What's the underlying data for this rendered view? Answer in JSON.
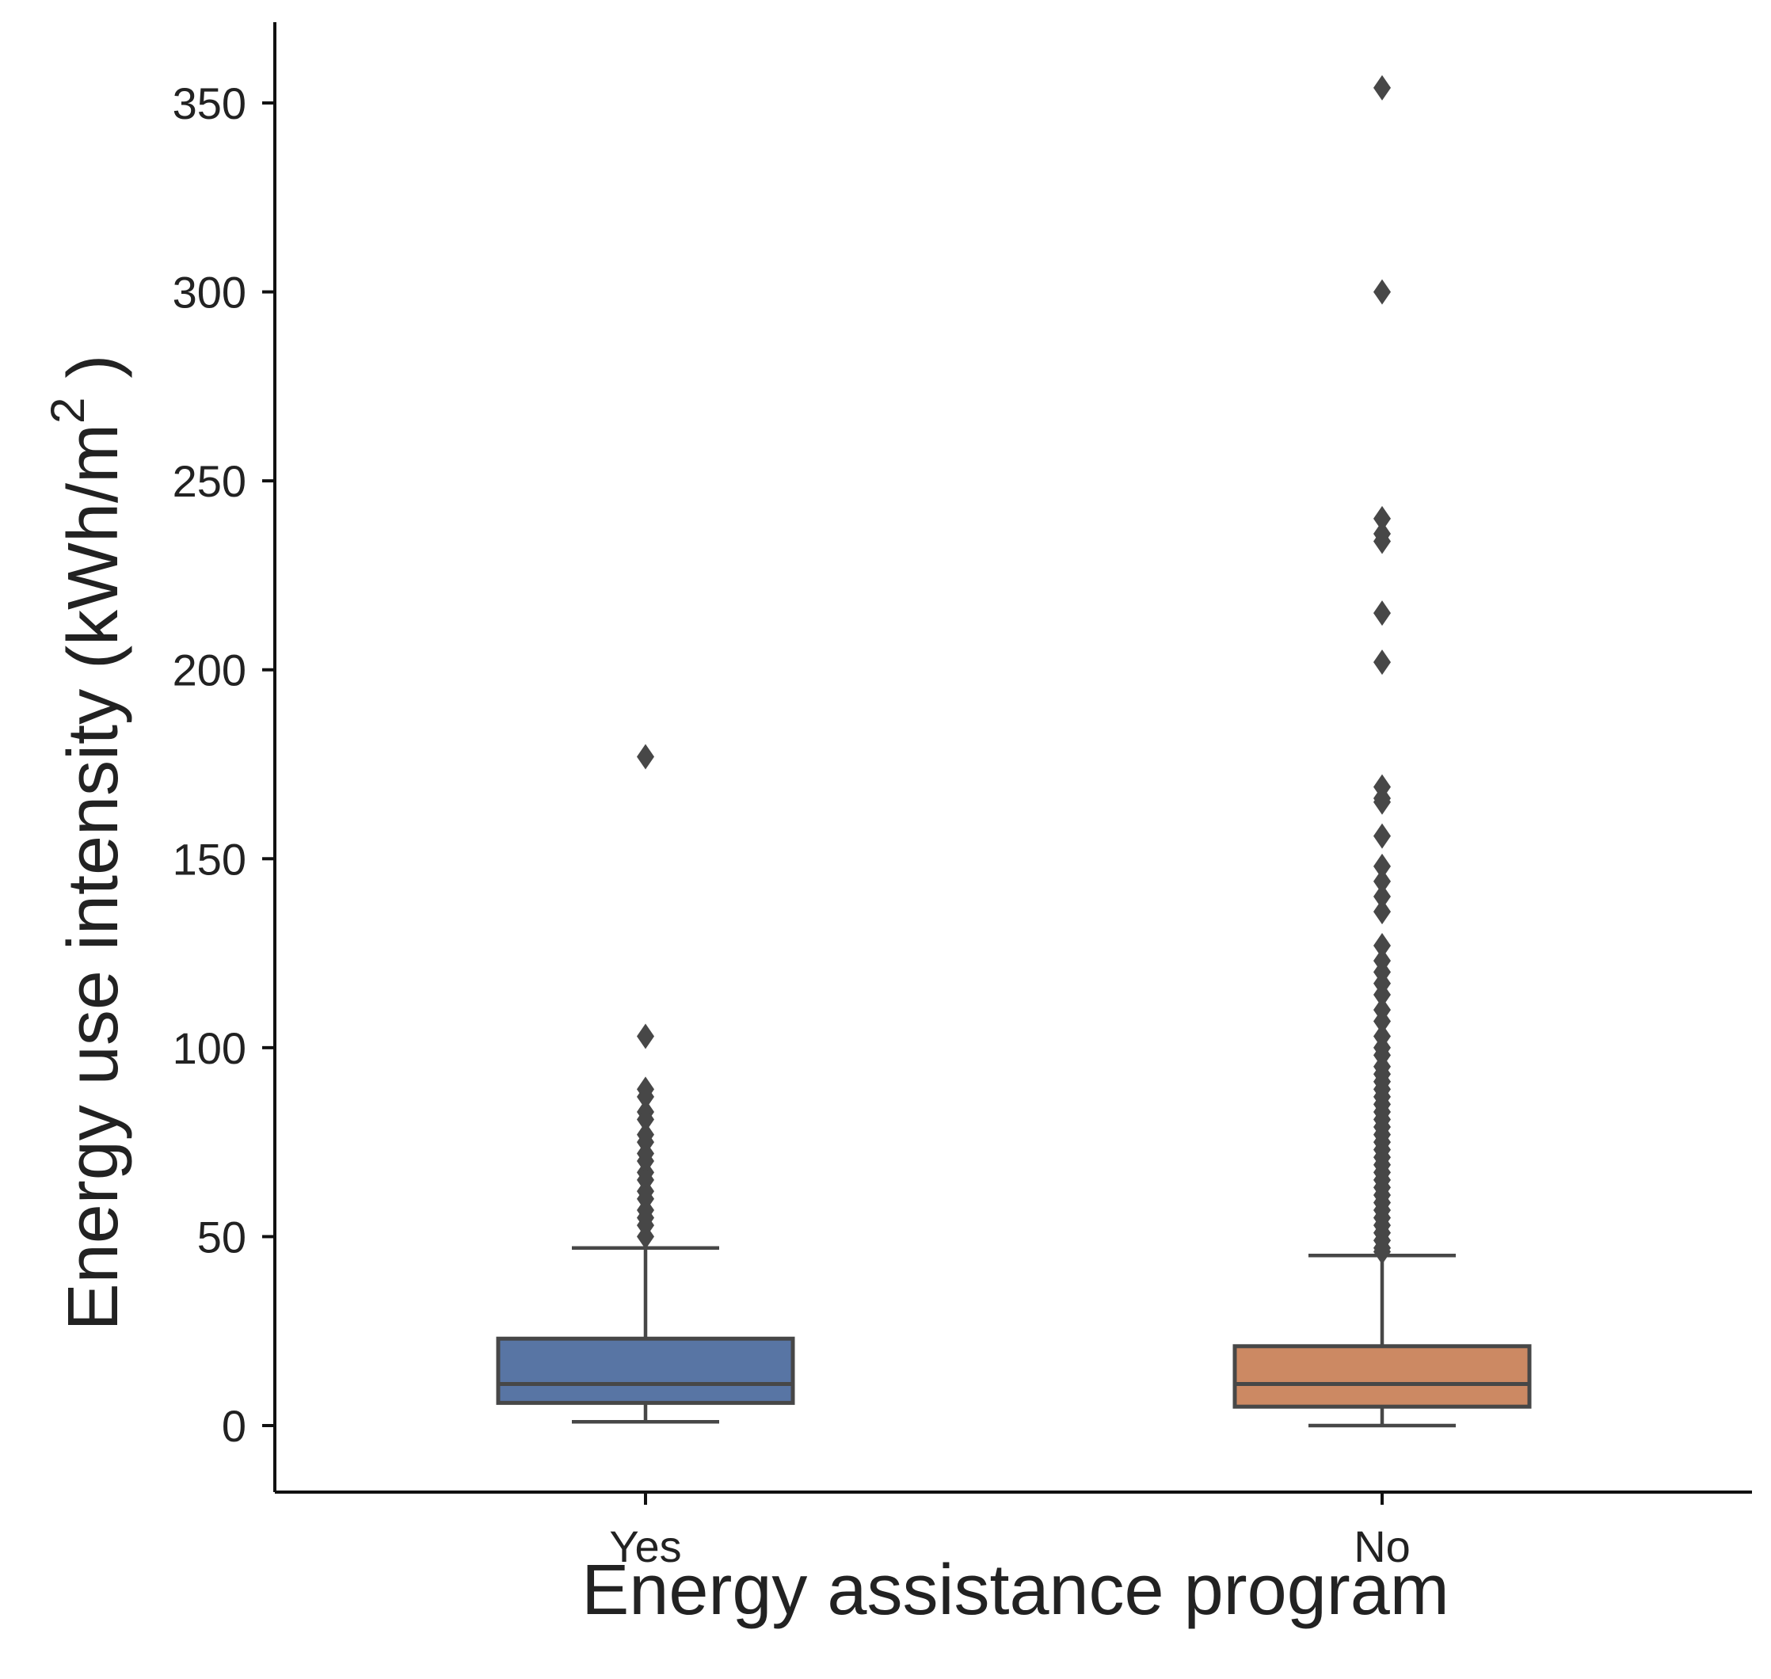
{
  "chart_data": {
    "type": "box",
    "xlabel": "Energy assistance program",
    "ylabel_main": "Energy use intensity (kWh/m",
    "ylabel_sup": "2",
    "ylabel_close": ")",
    "ylim": [
      -18,
      372
    ],
    "yticks": [
      0,
      50,
      100,
      150,
      200,
      250,
      300,
      350
    ],
    "categories": [
      "Yes",
      "No"
    ],
    "grid": false,
    "legend": "none",
    "colors": {
      "Yes": "#5875a4",
      "No": "#cc8963",
      "outline": "#474747",
      "axis": "#111111"
    },
    "boxes": [
      {
        "category": "Yes",
        "whisker_low": 1,
        "q1": 6,
        "median": 11,
        "q3": 23,
        "whisker_high": 47,
        "outliers": [
          177,
          103,
          89,
          87,
          83,
          81,
          77,
          75,
          72,
          70,
          67,
          65,
          62,
          60,
          57,
          55,
          53,
          50
        ]
      },
      {
        "category": "No",
        "whisker_low": 0,
        "q1": 5,
        "median": 11,
        "q3": 21,
        "whisker_high": 45,
        "outliers": [
          354,
          300,
          240,
          236,
          234,
          215,
          202,
          169,
          166,
          165,
          156,
          148,
          144,
          140,
          136,
          127,
          123,
          120,
          117,
          114,
          110,
          107,
          103,
          100,
          98,
          95,
          93,
          91,
          89,
          87,
          85,
          83,
          81,
          79,
          77,
          75,
          73,
          71,
          69,
          67,
          65,
          63,
          61,
          59,
          57,
          55,
          53,
          51,
          49,
          47,
          46
        ]
      }
    ]
  }
}
